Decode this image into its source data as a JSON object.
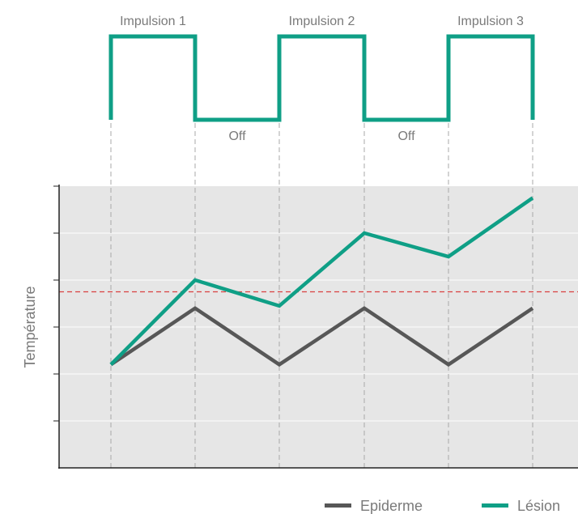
{
  "chart_data": [
    {
      "type": "line",
      "name": "pulse-train",
      "states": [
        "on",
        "off",
        "on",
        "off",
        "on"
      ],
      "pulse_labels": [
        "Impulsion 1",
        "Impulsion 2",
        "Impulsion 3"
      ],
      "off_labels": [
        "Off",
        "Off"
      ],
      "color": "#0f9f86"
    },
    {
      "type": "line",
      "title": "",
      "xlabel": "",
      "ylabel": "Température",
      "x": [
        0,
        1,
        2,
        3,
        4,
        5
      ],
      "ylim": [
        0,
        6
      ],
      "y_ticks": [
        1,
        2,
        3,
        4,
        5,
        6
      ],
      "threshold": 3.75,
      "grid": true,
      "legend_position": "bottom-right",
      "series": [
        {
          "name": "Epiderme",
          "color": "#575757",
          "values": [
            2.2,
            3.4,
            2.2,
            3.4,
            2.2,
            3.4
          ]
        },
        {
          "name": "Lésion",
          "color": "#0f9f86",
          "values": [
            2.2,
            4.0,
            3.45,
            5.0,
            4.5,
            5.75
          ]
        }
      ]
    }
  ],
  "colors": {
    "plot_background": "#e6e6e6",
    "threshold_line": "#d94040",
    "guide_line": "#a8a8a8",
    "axis": "#222222",
    "text": "#7a7a7a"
  }
}
